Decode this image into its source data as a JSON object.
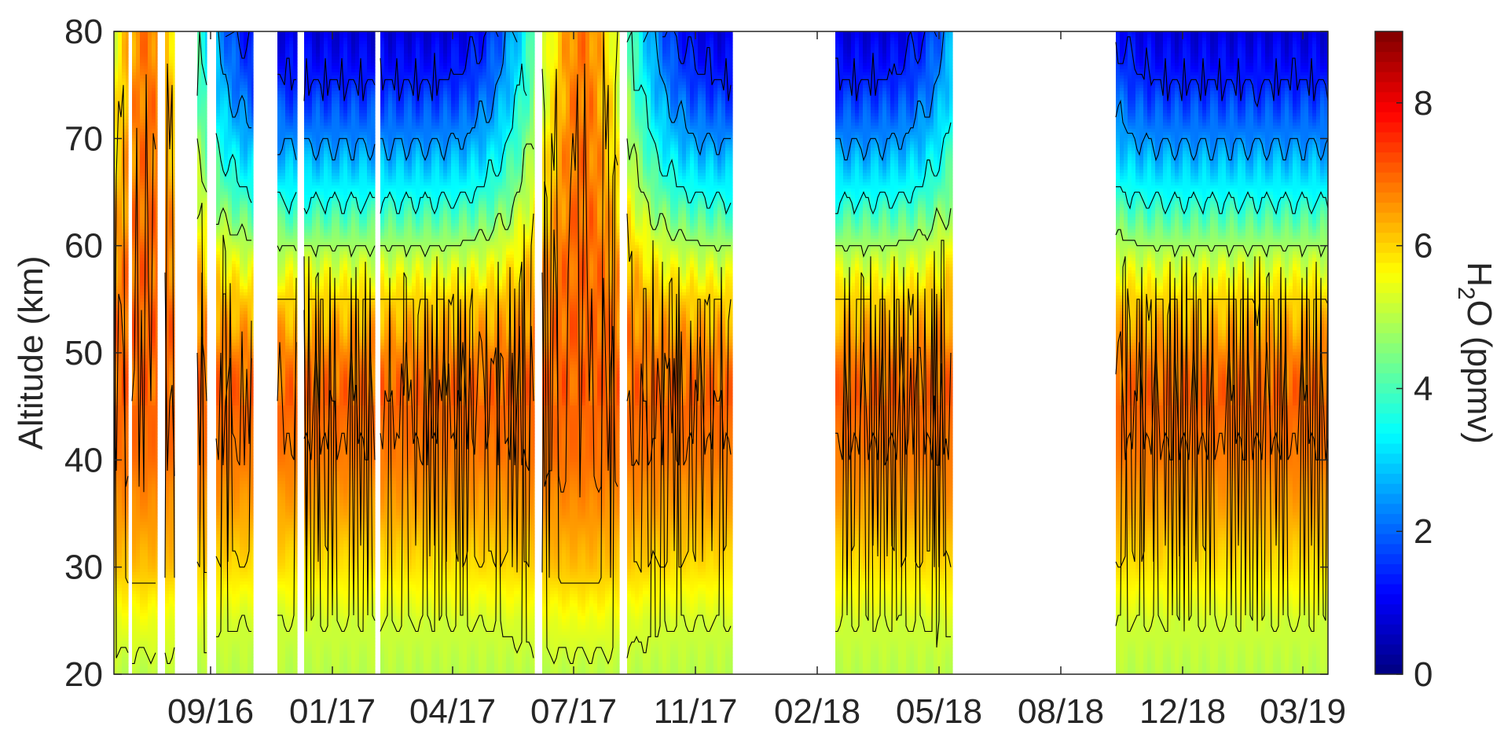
{
  "chart_data": {
    "type": "heatmap",
    "title": "",
    "xlabel": "",
    "ylabel": "Altitude (km)",
    "colorbar_label": "H2O (ppmv)",
    "colorbar_label_parts": {
      "base": "H",
      "sub": "2",
      "rest": "O (ppmv)"
    },
    "x_tick_labels": [
      "09/16",
      "01/17",
      "04/17",
      "07/17",
      "11/17",
      "02/18",
      "05/18",
      "08/18",
      "12/18",
      "03/19"
    ],
    "y_ticks": [
      20,
      30,
      40,
      50,
      60,
      70,
      80
    ],
    "ylim": [
      20,
      80
    ],
    "colorbar_ticks": [
      0,
      2,
      4,
      6,
      8
    ],
    "colorbar_lim": [
      0,
      9
    ],
    "colormap": "jet",
    "contour_lines": true,
    "data_gaps": [
      "08/16 (several short gaps)",
      "10/16 - 11/16",
      "02/18",
      "06/18 - 10/18"
    ],
    "approx_field": {
      "description": "Water vapour mixing ratio vs altitude; ~5 ppmv near 20-30 km, ~6.5-7 ppmv (maximum) near 35-55 km, decreasing to ~0.5-1 ppmv near 80 km in winter and remaining high (~7 ppmv) up to 80 km in summer.",
      "altitude_km": [
        20,
        25,
        30,
        35,
        40,
        45,
        50,
        55,
        60,
        65,
        70,
        75,
        80
      ],
      "winter_profile_ppmv": [
        5.0,
        5.2,
        5.9,
        6.4,
        6.8,
        7.0,
        6.7,
        6.0,
        4.8,
        3.4,
        2.3,
        1.4,
        0.8
      ],
      "summer_profile_ppmv": [
        5.0,
        5.5,
        6.2,
        6.6,
        6.9,
        7.0,
        7.0,
        7.0,
        7.0,
        6.9,
        6.9,
        6.8,
        6.8
      ]
    }
  }
}
